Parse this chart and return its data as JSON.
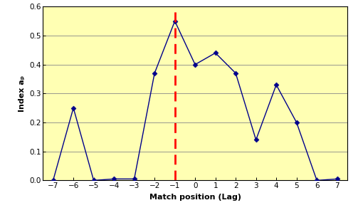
{
  "x": [
    -7,
    -6,
    -5,
    -4,
    -3,
    -2,
    -1,
    0,
    1,
    2,
    3,
    4,
    5,
    6,
    7
  ],
  "y": [
    0.0,
    0.25,
    0.0,
    0.005,
    0.005,
    0.37,
    0.55,
    0.4,
    0.44,
    0.37,
    0.14,
    0.33,
    0.2,
    0.0,
    0.005
  ],
  "xlabel": "Match position (Lag)",
  "ylabel": "Index aₚ",
  "ylim": [
    0,
    0.6
  ],
  "xlim": [
    -7.5,
    7.5
  ],
  "yticks": [
    0.0,
    0.1,
    0.2,
    0.3,
    0.4,
    0.5,
    0.6
  ],
  "xticks": [
    -7,
    -6,
    -5,
    -4,
    -3,
    -2,
    -1,
    0,
    1,
    2,
    3,
    4,
    5,
    6,
    7
  ],
  "line_color": "#00008B",
  "marker_color": "#00008B",
  "background_color": "#FFFFB3",
  "fig_background": "#ffffff",
  "dashed_line_x": -1,
  "dashed_line_color": "#FF0000",
  "grid_color": "#888888",
  "border_color": "#000000"
}
